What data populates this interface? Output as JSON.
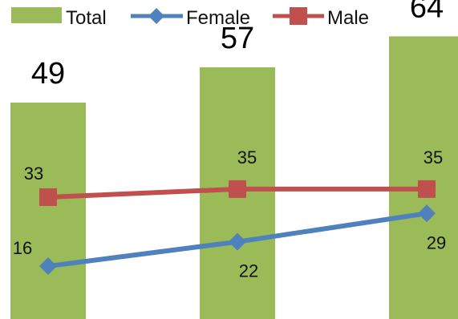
{
  "chart_data": {
    "type": "bar",
    "categories": [
      "",
      "",
      ""
    ],
    "series": [
      {
        "name": "Total",
        "kind": "bar",
        "values": [
          49,
          57,
          64
        ],
        "color": "#9bbb59"
      },
      {
        "name": "Female",
        "kind": "line",
        "marker": "diamond",
        "values": [
          16,
          22,
          29
        ],
        "color": "#4f81bd"
      },
      {
        "name": "Male",
        "kind": "line",
        "marker": "square",
        "values": [
          33,
          35,
          35
        ],
        "color": "#c0504d"
      }
    ],
    "title": "",
    "xlabel": "",
    "ylabel": "",
    "legend": "top-left",
    "grid": false,
    "axes_visible": false
  }
}
